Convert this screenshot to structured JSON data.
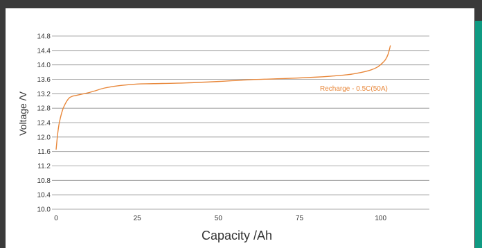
{
  "chart_data": {
    "type": "line",
    "xlabel": "Capacity  /Ah",
    "ylabel": "Voltage  /V",
    "xlim": [
      0,
      115
    ],
    "ylim": [
      10.0,
      14.8
    ],
    "x_ticks": [
      "0",
      "25",
      "50",
      "75",
      "100"
    ],
    "x_tick_values": [
      0,
      25,
      50,
      75,
      100
    ],
    "y_ticks": [
      "10.0",
      "10.4",
      "10.8",
      "11.2",
      "11.6",
      "12.0",
      "12.4",
      "12.8",
      "13.2",
      "13.6",
      "14.0",
      "14.4",
      "14.8"
    ],
    "y_tick_values": [
      10.0,
      10.4,
      10.8,
      11.2,
      11.6,
      12.0,
      12.4,
      12.8,
      13.2,
      13.6,
      14.0,
      14.4,
      14.8
    ],
    "grid": "horizontal",
    "series": [
      {
        "name": "Recharge - 0.5C(50A)",
        "color": "#e8873a",
        "x": [
          0,
          0.5,
          1,
          2,
          3,
          4,
          5,
          6,
          8,
          10,
          12,
          15,
          20,
          25,
          30,
          40,
          50,
          60,
          70,
          80,
          85,
          90,
          94,
          97,
          99,
          100.5,
          101.5,
          102.3,
          103
        ],
        "y": [
          11.65,
          12.1,
          12.4,
          12.75,
          12.95,
          13.08,
          13.13,
          13.15,
          13.19,
          13.23,
          13.28,
          13.36,
          13.43,
          13.47,
          13.48,
          13.5,
          13.54,
          13.59,
          13.62,
          13.66,
          13.69,
          13.73,
          13.79,
          13.86,
          13.94,
          14.05,
          14.15,
          14.3,
          14.54
        ]
      }
    ],
    "annotation": "Recharge - 0.5C(50A)"
  }
}
